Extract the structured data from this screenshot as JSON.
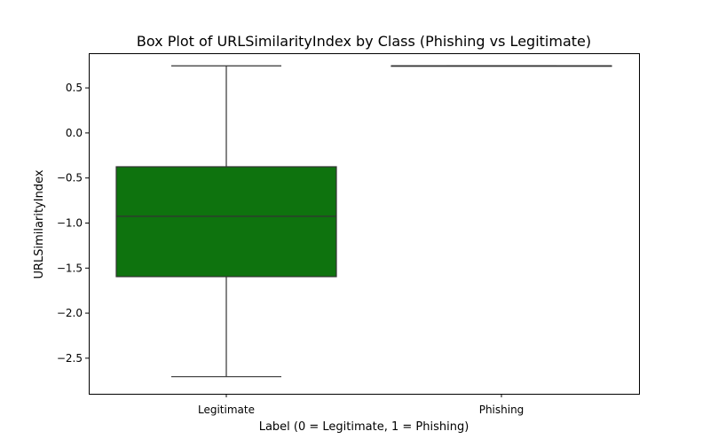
{
  "chart_data": {
    "type": "box",
    "title": "Box Plot of URLSimilarityIndex by Class (Phishing vs Legitimate)",
    "xlabel": "Label (0 = Legitimate, 1 = Phishing)",
    "ylabel": "URLSimilarityIndex",
    "categories": [
      "Legitimate",
      "Phishing"
    ],
    "ylim": [
      -2.9,
      0.88
    ],
    "yticks": [
      0.5,
      0.0,
      -0.5,
      -1.0,
      -1.5,
      -2.0,
      -2.5
    ],
    "ytick_labels": [
      "0.5",
      "0.0",
      "−0.5",
      "−1.0",
      "−1.5",
      "−2.0",
      "−2.5"
    ],
    "boxes": [
      {
        "category": "Legitimate",
        "whisker_low": -2.71,
        "q1": -1.6,
        "median": -0.93,
        "q3": -0.38,
        "whisker_high": 0.74
      },
      {
        "category": "Phishing",
        "whisker_low": 0.74,
        "q1": 0.74,
        "median": 0.74,
        "q3": 0.74,
        "whisker_high": 0.74
      }
    ],
    "box_colors": [
      "#0e730e",
      "#0e730e"
    ],
    "line_color": "#333333",
    "grid": false,
    "legend": "none"
  }
}
